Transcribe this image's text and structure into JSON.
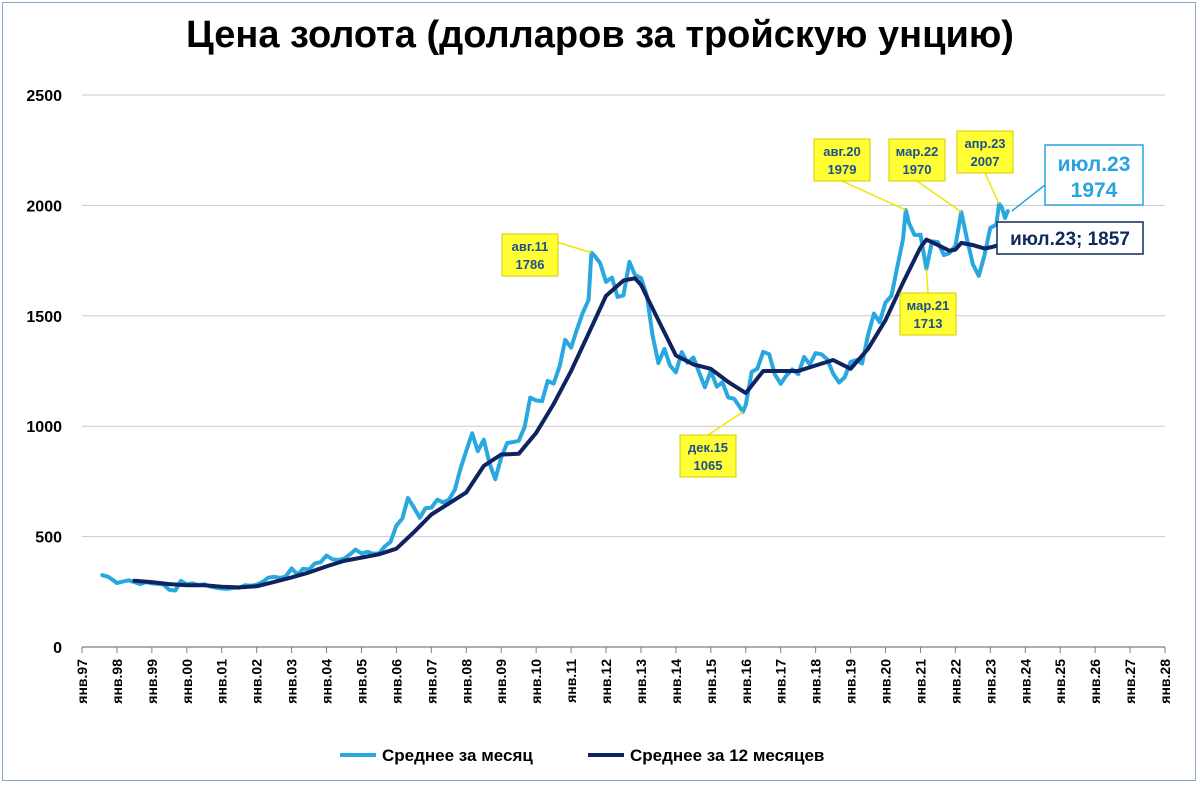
{
  "chart_data": {
    "type": "line",
    "title": "Цена золота (долларов за тройскую унцию)",
    "ylim": [
      0,
      2500
    ],
    "yticks": [
      0,
      500,
      1000,
      1500,
      2000,
      2500
    ],
    "x_tick_labels": [
      "янв.97",
      "янв.98",
      "янв.99",
      "янв.00",
      "янв.01",
      "янв.02",
      "янв.03",
      "янв.04",
      "янв.05",
      "янв.06",
      "янв.07",
      "янв.08",
      "янв.09",
      "янв.10",
      "янв.11",
      "янв.12",
      "янв.13",
      "янв.14",
      "янв.15",
      "янв.16",
      "янв.17",
      "янв.18",
      "янв.19",
      "янв.20",
      "янв.21",
      "янв.22",
      "янв.23",
      "янв.24",
      "янв.25",
      "янв.26",
      "янв.27",
      "янв.28"
    ],
    "xlim_years": [
      1997.0,
      2028.0
    ],
    "grid": "horizontal",
    "legend_position": "bottom",
    "series": [
      {
        "name": "Среднее за месяц",
        "color": "#29a8e0",
        "points": [
          [
            1997.58,
            325
          ],
          [
            1997.75,
            318
          ],
          [
            1997.92,
            300
          ],
          [
            1998.0,
            290
          ],
          [
            1998.17,
            296
          ],
          [
            1998.33,
            302
          ],
          [
            1998.5,
            294
          ],
          [
            1998.67,
            285
          ],
          [
            1998.83,
            294
          ],
          [
            1999.0,
            288
          ],
          [
            1999.17,
            286
          ],
          [
            1999.33,
            283
          ],
          [
            1999.5,
            259
          ],
          [
            1999.67,
            256
          ],
          [
            1999.83,
            300
          ],
          [
            2000.0,
            284
          ],
          [
            2000.17,
            288
          ],
          [
            2000.33,
            281
          ],
          [
            2000.5,
            284
          ],
          [
            2000.67,
            274
          ],
          [
            2000.83,
            269
          ],
          [
            2001.0,
            265
          ],
          [
            2001.17,
            263
          ],
          [
            2001.33,
            268
          ],
          [
            2001.5,
            268
          ],
          [
            2001.67,
            280
          ],
          [
            2001.83,
            277
          ],
          [
            2002.0,
            282
          ],
          [
            2002.17,
            295
          ],
          [
            2002.33,
            314
          ],
          [
            2002.5,
            318
          ],
          [
            2002.67,
            313
          ],
          [
            2002.83,
            319
          ],
          [
            2003.0,
            356
          ],
          [
            2003.17,
            328
          ],
          [
            2003.33,
            354
          ],
          [
            2003.5,
            351
          ],
          [
            2003.67,
            379
          ],
          [
            2003.83,
            384
          ],
          [
            2004.0,
            414
          ],
          [
            2004.17,
            397
          ],
          [
            2004.33,
            394
          ],
          [
            2004.5,
            400
          ],
          [
            2004.67,
            420
          ],
          [
            2004.83,
            441
          ],
          [
            2005.0,
            424
          ],
          [
            2005.17,
            431
          ],
          [
            2005.33,
            422
          ],
          [
            2005.5,
            424
          ],
          [
            2005.67,
            456
          ],
          [
            2005.83,
            476
          ],
          [
            2006.0,
            550
          ],
          [
            2006.17,
            582
          ],
          [
            2006.33,
            675
          ],
          [
            2006.5,
            632
          ],
          [
            2006.67,
            585
          ],
          [
            2006.83,
            628
          ],
          [
            2007.0,
            631
          ],
          [
            2007.17,
            667
          ],
          [
            2007.33,
            655
          ],
          [
            2007.5,
            666
          ],
          [
            2007.67,
            712
          ],
          [
            2007.83,
            806
          ],
          [
            2008.0,
            889
          ],
          [
            2008.17,
            968
          ],
          [
            2008.33,
            887
          ],
          [
            2008.5,
            939
          ],
          [
            2008.67,
            829
          ],
          [
            2008.83,
            760
          ],
          [
            2009.0,
            858
          ],
          [
            2009.17,
            924
          ],
          [
            2009.33,
            928
          ],
          [
            2009.5,
            934
          ],
          [
            2009.67,
            996
          ],
          [
            2009.83,
            1129
          ],
          [
            2010.0,
            1117
          ],
          [
            2010.17,
            1113
          ],
          [
            2010.33,
            1205
          ],
          [
            2010.5,
            1193
          ],
          [
            2010.67,
            1271
          ],
          [
            2010.83,
            1391
          ],
          [
            2011.0,
            1356
          ],
          [
            2011.17,
            1439
          ],
          [
            2011.33,
            1512
          ],
          [
            2011.5,
            1572
          ],
          [
            2011.58,
            1786
          ],
          [
            2011.67,
            1772
          ],
          [
            2011.83,
            1739
          ],
          [
            2012.0,
            1654
          ],
          [
            2012.17,
            1673
          ],
          [
            2012.33,
            1585
          ],
          [
            2012.5,
            1593
          ],
          [
            2012.67,
            1744
          ],
          [
            2012.83,
            1685
          ],
          [
            2013.0,
            1671
          ],
          [
            2013.17,
            1592
          ],
          [
            2013.33,
            1412
          ],
          [
            2013.5,
            1286
          ],
          [
            2013.67,
            1350
          ],
          [
            2013.83,
            1275
          ],
          [
            2014.0,
            1244
          ],
          [
            2014.17,
            1336
          ],
          [
            2014.33,
            1288
          ],
          [
            2014.5,
            1311
          ],
          [
            2014.67,
            1241
          ],
          [
            2014.83,
            1176
          ],
          [
            2015.0,
            1251
          ],
          [
            2015.17,
            1179
          ],
          [
            2015.33,
            1199
          ],
          [
            2015.5,
            1130
          ],
          [
            2015.67,
            1124
          ],
          [
            2015.92,
            1065
          ],
          [
            2016.0,
            1097
          ],
          [
            2016.17,
            1246
          ],
          [
            2016.33,
            1260
          ],
          [
            2016.5,
            1337
          ],
          [
            2016.67,
            1326
          ],
          [
            2016.83,
            1235
          ],
          [
            2017.0,
            1192
          ],
          [
            2017.17,
            1231
          ],
          [
            2017.33,
            1257
          ],
          [
            2017.5,
            1236
          ],
          [
            2017.67,
            1314
          ],
          [
            2017.83,
            1280
          ],
          [
            2018.0,
            1331
          ],
          [
            2018.17,
            1325
          ],
          [
            2018.33,
            1303
          ],
          [
            2018.5,
            1238
          ],
          [
            2018.67,
            1198
          ],
          [
            2018.83,
            1221
          ],
          [
            2019.0,
            1291
          ],
          [
            2019.17,
            1300
          ],
          [
            2019.33,
            1284
          ],
          [
            2019.5,
            1412
          ],
          [
            2019.67,
            1510
          ],
          [
            2019.83,
            1471
          ],
          [
            2020.0,
            1560
          ],
          [
            2020.17,
            1591
          ],
          [
            2020.33,
            1715
          ],
          [
            2020.5,
            1846
          ],
          [
            2020.58,
            1979
          ],
          [
            2020.67,
            1921
          ],
          [
            2020.83,
            1866
          ],
          [
            2021.0,
            1867
          ],
          [
            2021.17,
            1713
          ],
          [
            2021.33,
            1837
          ],
          [
            2021.5,
            1834
          ],
          [
            2021.67,
            1775
          ],
          [
            2021.83,
            1784
          ],
          [
            2022.0,
            1817
          ],
          [
            2022.17,
            1970
          ],
          [
            2022.33,
            1849
          ],
          [
            2022.5,
            1733
          ],
          [
            2022.67,
            1681
          ],
          [
            2022.83,
            1773
          ],
          [
            2023.0,
            1898
          ],
          [
            2023.17,
            1913
          ],
          [
            2023.25,
            2007
          ],
          [
            2023.33,
            1991
          ],
          [
            2023.42,
            1943
          ],
          [
            2023.5,
            1974
          ]
        ]
      },
      {
        "name": "Среднее за 12 месяцев",
        "color": "#0f2360",
        "points": [
          [
            1998.5,
            300
          ],
          [
            1999.0,
            294
          ],
          [
            1999.5,
            285
          ],
          [
            2000.0,
            280
          ],
          [
            2000.5,
            280
          ],
          [
            2001.0,
            273
          ],
          [
            2001.5,
            270
          ],
          [
            2002.0,
            275
          ],
          [
            2002.5,
            295
          ],
          [
            2003.0,
            315
          ],
          [
            2003.5,
            338
          ],
          [
            2004.0,
            365
          ],
          [
            2004.5,
            390
          ],
          [
            2005.0,
            405
          ],
          [
            2005.5,
            420
          ],
          [
            2006.0,
            445
          ],
          [
            2006.5,
            520
          ],
          [
            2007.0,
            600
          ],
          [
            2007.5,
            650
          ],
          [
            2008.0,
            700
          ],
          [
            2008.5,
            820
          ],
          [
            2009.0,
            872
          ],
          [
            2009.5,
            875
          ],
          [
            2010.0,
            970
          ],
          [
            2010.5,
            1100
          ],
          [
            2011.0,
            1250
          ],
          [
            2011.5,
            1420
          ],
          [
            2012.0,
            1590
          ],
          [
            2012.5,
            1660
          ],
          [
            2012.83,
            1670
          ],
          [
            2013.0,
            1640
          ],
          [
            2013.5,
            1480
          ],
          [
            2014.0,
            1320
          ],
          [
            2014.5,
            1280
          ],
          [
            2015.0,
            1260
          ],
          [
            2015.5,
            1200
          ],
          [
            2016.0,
            1150
          ],
          [
            2016.5,
            1250
          ],
          [
            2017.0,
            1250
          ],
          [
            2017.5,
            1250
          ],
          [
            2018.0,
            1275
          ],
          [
            2018.5,
            1300
          ],
          [
            2019.0,
            1260
          ],
          [
            2019.5,
            1350
          ],
          [
            2020.0,
            1480
          ],
          [
            2020.5,
            1650
          ],
          [
            2021.0,
            1810
          ],
          [
            2021.17,
            1845
          ],
          [
            2021.5,
            1820
          ],
          [
            2021.83,
            1795
          ],
          [
            2022.0,
            1800
          ],
          [
            2022.17,
            1830
          ],
          [
            2022.5,
            1820
          ],
          [
            2022.83,
            1805
          ],
          [
            2023.0,
            1810
          ],
          [
            2023.25,
            1820
          ],
          [
            2023.5,
            1857
          ]
        ]
      }
    ],
    "annotations": [
      {
        "label": "авг.11",
        "value": "1786",
        "x": 2011.58,
        "y": 1786
      },
      {
        "label": "авг.20",
        "value": "1979",
        "x": 2020.58,
        "y": 1979
      },
      {
        "label": "мар.22",
        "value": "1970",
        "x": 2022.17,
        "y": 1970
      },
      {
        "label": "апр.23",
        "value": "2007",
        "x": 2023.25,
        "y": 2007
      },
      {
        "label": "дек.15",
        "value": "1065",
        "x": 2015.92,
        "y": 1065
      },
      {
        "label": "мар.21",
        "value": "1713",
        "x": 2021.17,
        "y": 1713
      }
    ],
    "last_label_month": "июл.23",
    "last_label_month_value": "1974",
    "last_label_avg": "июл.23; 1857"
  }
}
